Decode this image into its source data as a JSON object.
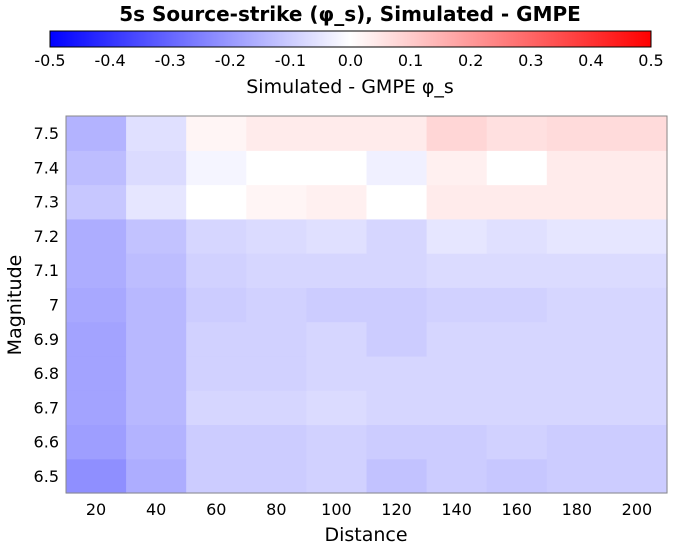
{
  "chart_data": {
    "type": "heatmap",
    "title": "5s Source-strike (φ_s), Simulated - GMPE",
    "xlabel": "Distance",
    "ylabel": "Magnitude",
    "x": [
      20,
      40,
      60,
      80,
      100,
      120,
      140,
      160,
      180,
      200
    ],
    "y": [
      6.5,
      6.6,
      6.7,
      6.8,
      6.9,
      7.0,
      7.1,
      7.2,
      7.3,
      7.4,
      7.5
    ],
    "x_tick_labels": [
      "20",
      "40",
      "60",
      "80",
      "100",
      "120",
      "140",
      "160",
      "180",
      "200"
    ],
    "y_tick_labels": [
      "6.5",
      "6.6",
      "6.7",
      "6.8",
      "6.9",
      "7",
      "7.1",
      "7.2",
      "7.3",
      "7.4",
      "7.5"
    ],
    "values": [
      [
        -0.22,
        -0.16,
        -0.1,
        -0.1,
        -0.09,
        -0.12,
        -0.1,
        -0.11,
        -0.1,
        -0.1
      ],
      [
        -0.19,
        -0.15,
        -0.1,
        -0.1,
        -0.09,
        -0.1,
        -0.1,
        -0.09,
        -0.1,
        -0.1
      ],
      [
        -0.18,
        -0.14,
        -0.08,
        -0.08,
        -0.07,
        -0.08,
        -0.08,
        -0.08,
        -0.08,
        -0.08
      ],
      [
        -0.18,
        -0.14,
        -0.09,
        -0.09,
        -0.08,
        -0.08,
        -0.08,
        -0.08,
        -0.08,
        -0.08
      ],
      [
        -0.18,
        -0.14,
        -0.09,
        -0.09,
        -0.08,
        -0.1,
        -0.08,
        -0.08,
        -0.08,
        -0.08
      ],
      [
        -0.17,
        -0.14,
        -0.1,
        -0.09,
        -0.1,
        -0.1,
        -0.09,
        -0.09,
        -0.08,
        -0.08
      ],
      [
        -0.16,
        -0.13,
        -0.09,
        -0.08,
        -0.08,
        -0.08,
        -0.07,
        -0.07,
        -0.07,
        -0.07
      ],
      [
        -0.16,
        -0.12,
        -0.08,
        -0.07,
        -0.06,
        -0.08,
        -0.05,
        -0.06,
        -0.05,
        -0.05
      ],
      [
        -0.11,
        -0.05,
        0.0,
        0.02,
        0.03,
        0.0,
        0.04,
        0.04,
        0.04,
        0.04
      ],
      [
        -0.13,
        -0.07,
        -0.02,
        0.0,
        0.0,
        -0.03,
        0.03,
        0.0,
        0.04,
        0.04
      ],
      [
        -0.15,
        -0.06,
        0.02,
        0.04,
        0.04,
        0.04,
        0.08,
        0.06,
        0.07,
        0.07
      ]
    ],
    "colorbar": {
      "label": "Simulated - GMPE φ_s",
      "min": -0.5,
      "max": 0.5,
      "ticks": [
        "-0.5",
        "-0.4",
        "-0.3",
        "-0.2",
        "-0.1",
        "0.0",
        "0.1",
        "0.2",
        "0.3",
        "0.4",
        "0.5"
      ],
      "colors": [
        "#0000ff",
        "#ffffff",
        "#ff0000"
      ],
      "placement": "top"
    },
    "grid": false
  }
}
